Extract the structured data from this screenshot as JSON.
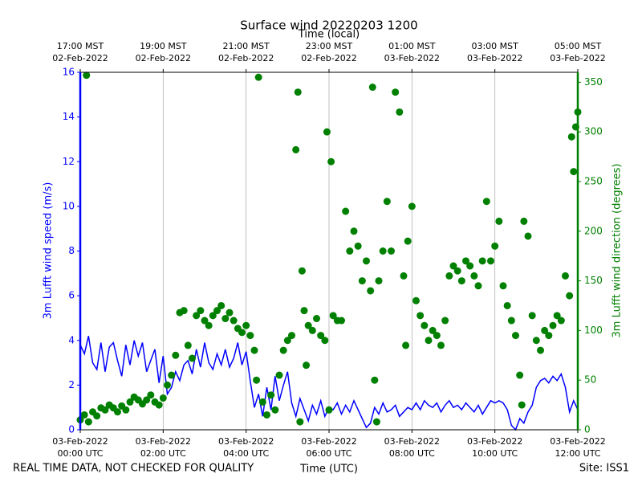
{
  "chart_data": {
    "type": "line-scatter",
    "title": "Surface wind 20220203 1200",
    "x_label": "Time (UTC)",
    "x2_label": "Time (local)",
    "y_label": "3m Lufft wind speed (m/s)",
    "y2_label": "3m Lufft wind direction (degrees)",
    "footer_left": "REAL TIME DATA, NOT CHECKED FOR QUALITY",
    "footer_right": "Site: ISS1",
    "grid": true,
    "xlim": [
      0,
      12
    ],
    "xticks": [
      {
        "value": 0,
        "label": "03-Feb-2022\n00:00 UTC"
      },
      {
        "value": 2,
        "label": "03-Feb-2022\n02:00 UTC"
      },
      {
        "value": 4,
        "label": "03-Feb-2022\n04:00 UTC"
      },
      {
        "value": 6,
        "label": "03-Feb-2022\n06:00 UTC"
      },
      {
        "value": 8,
        "label": "03-Feb-2022\n08:00 UTC"
      },
      {
        "value": 10,
        "label": "03-Feb-2022\n10:00 UTC"
      },
      {
        "value": 12,
        "label": "03-Feb-2022\n12:00 UTC"
      }
    ],
    "x2ticks": [
      {
        "value": 0,
        "label": "17:00 MST\n02-Feb-2022"
      },
      {
        "value": 2,
        "label": "19:00 MST\n02-Feb-2022"
      },
      {
        "value": 4,
        "label": "21:00 MST\n02-Feb-2022"
      },
      {
        "value": 6,
        "label": "23:00 MST\n02-Feb-2022"
      },
      {
        "value": 8,
        "label": "01:00 MST\n03-Feb-2022"
      },
      {
        "value": 10,
        "label": "03:00 MST\n03-Feb-2022"
      },
      {
        "value": 12,
        "label": "05:00 MST\n03-Feb-2022"
      }
    ],
    "ylim": [
      0,
      16
    ],
    "yticks": [
      0,
      2,
      4,
      6,
      8,
      10,
      12,
      14,
      16
    ],
    "y2lim": [
      0,
      360
    ],
    "y2ticks": [
      0,
      50,
      100,
      150,
      200,
      250,
      300,
      350
    ],
    "series": [
      {
        "name": "3m Lufft wind speed (m/s)",
        "type": "line",
        "color": "blue",
        "x": [
          0,
          0.1,
          0.2,
          0.3,
          0.4,
          0.5,
          0.6,
          0.7,
          0.8,
          0.9,
          1,
          1.1,
          1.2,
          1.3,
          1.4,
          1.5,
          1.6,
          1.7,
          1.8,
          1.9,
          2,
          2.1,
          2.2,
          2.3,
          2.4,
          2.5,
          2.6,
          2.7,
          2.8,
          2.9,
          3,
          3.1,
          3.2,
          3.3,
          3.4,
          3.5,
          3.6,
          3.7,
          3.8,
          3.9,
          4,
          4.1,
          4.2,
          4.3,
          4.4,
          4.5,
          4.6,
          4.7,
          4.8,
          4.9,
          5,
          5.1,
          5.2,
          5.3,
          5.4,
          5.5,
          5.6,
          5.7,
          5.8,
          5.9,
          6,
          6.1,
          6.2,
          6.3,
          6.4,
          6.5,
          6.6,
          6.7,
          6.8,
          6.9,
          7,
          7.1,
          7.2,
          7.3,
          7.4,
          7.5,
          7.6,
          7.7,
          7.8,
          7.9,
          8,
          8.1,
          8.2,
          8.3,
          8.4,
          8.5,
          8.6,
          8.7,
          8.8,
          8.9,
          9,
          9.1,
          9.2,
          9.3,
          9.4,
          9.5,
          9.6,
          9.7,
          9.8,
          9.9,
          10,
          10.1,
          10.2,
          10.3,
          10.4,
          10.5,
          10.6,
          10.7,
          10.8,
          10.9,
          11,
          11.1,
          11.2,
          11.3,
          11.4,
          11.5,
          11.6,
          11.7,
          11.8,
          11.9,
          12
        ],
        "values": [
          3.8,
          3.4,
          4.2,
          3.0,
          2.7,
          3.9,
          2.6,
          3.7,
          3.9,
          3.1,
          2.4,
          3.8,
          2.9,
          4.0,
          3.3,
          3.9,
          2.6,
          3.1,
          3.6,
          2.1,
          3.3,
          1.6,
          1.9,
          2.6,
          2.2,
          2.9,
          3.1,
          2.5,
          3.6,
          2.8,
          3.9,
          3.0,
          2.7,
          3.4,
          2.9,
          3.6,
          2.8,
          3.2,
          3.9,
          2.9,
          3.5,
          2.2,
          1.0,
          1.6,
          0.6,
          1.9,
          0.9,
          2.4,
          1.3,
          2.0,
          2.6,
          1.2,
          0.6,
          1.4,
          0.9,
          0.4,
          1.1,
          0.7,
          1.3,
          0.6,
          1.0,
          0.9,
          1.2,
          0.7,
          1.1,
          0.8,
          1.3,
          0.9,
          0.5,
          0.1,
          0.3,
          1.0,
          0.7,
          1.2,
          0.8,
          0.9,
          1.1,
          0.6,
          0.8,
          1.0,
          0.9,
          1.2,
          0.9,
          1.3,
          1.1,
          1.0,
          1.2,
          0.8,
          1.1,
          1.3,
          1.0,
          1.1,
          0.9,
          1.2,
          1.0,
          0.8,
          1.1,
          0.7,
          1.0,
          1.3,
          1.2,
          1.3,
          1.2,
          0.9,
          0.2,
          0.0,
          0.5,
          0.3,
          0.8,
          1.1,
          1.9,
          2.2,
          2.3,
          2.1,
          2.4,
          2.2,
          2.5,
          1.9,
          0.8,
          1.3,
          0.9
        ]
      },
      {
        "name": "3m Lufft wind direction (degrees)",
        "type": "scatter",
        "color": "green",
        "axis": "y2",
        "x": [
          0,
          0.1,
          0.15,
          0.2,
          0.3,
          0.4,
          0.5,
          0.6,
          0.7,
          0.8,
          0.9,
          1,
          1.1,
          1.2,
          1.3,
          1.4,
          1.5,
          1.6,
          1.7,
          1.8,
          1.9,
          2,
          2.1,
          2.2,
          2.3,
          2.4,
          2.5,
          2.6,
          2.7,
          2.8,
          2.9,
          3,
          3.1,
          3.2,
          3.3,
          3.4,
          3.5,
          3.6,
          3.7,
          3.8,
          3.9,
          4,
          4.1,
          4.2,
          4.25,
          4.3,
          4.4,
          4.5,
          4.6,
          4.7,
          4.8,
          4.9,
          5,
          5.1,
          5.2,
          5.25,
          5.3,
          5.35,
          5.4,
          5.45,
          5.5,
          5.6,
          5.7,
          5.8,
          5.9,
          5.95,
          6,
          6.05,
          6.1,
          6.2,
          6.3,
          6.4,
          6.5,
          6.6,
          6.7,
          6.8,
          6.9,
          7,
          7.05,
          7.1,
          7.15,
          7.2,
          7.3,
          7.4,
          7.5,
          7.6,
          7.7,
          7.8,
          7.85,
          7.9,
          8,
          8.1,
          8.2,
          8.3,
          8.4,
          8.5,
          8.6,
          8.7,
          8.8,
          8.9,
          9,
          9.1,
          9.2,
          9.3,
          9.4,
          9.5,
          9.6,
          9.7,
          9.8,
          9.9,
          10,
          10.1,
          10.2,
          10.3,
          10.4,
          10.5,
          10.6,
          10.65,
          10.7,
          10.8,
          10.9,
          11,
          11.1,
          11.2,
          11.3,
          11.4,
          11.5,
          11.6,
          11.7,
          11.8,
          11.85,
          11.9,
          11.95,
          12
        ],
        "values": [
          10,
          15,
          357,
          8,
          18,
          14,
          22,
          20,
          25,
          22,
          18,
          24,
          20,
          28,
          33,
          30,
          26,
          30,
          35,
          28,
          25,
          32,
          45,
          55,
          75,
          118,
          120,
          85,
          72,
          115,
          120,
          110,
          105,
          115,
          120,
          125,
          112,
          118,
          110,
          102,
          98,
          105,
          95,
          80,
          50,
          355,
          28,
          15,
          35,
          20,
          55,
          80,
          90,
          95,
          282,
          340,
          8,
          160,
          120,
          65,
          105,
          100,
          112,
          95,
          90,
          300,
          20,
          270,
          115,
          110,
          110,
          220,
          180,
          200,
          185,
          150,
          170,
          140,
          345,
          50,
          8,
          150,
          180,
          230,
          180,
          340,
          320,
          155,
          85,
          190,
          225,
          130,
          115,
          105,
          90,
          100,
          95,
          85,
          110,
          155,
          165,
          160,
          150,
          170,
          165,
          155,
          145,
          170,
          230,
          170,
          185,
          210,
          145,
          125,
          110,
          95,
          55,
          25,
          210,
          195,
          115,
          90,
          80,
          100,
          95,
          105,
          115,
          110,
          155,
          135,
          295,
          260,
          305,
          320
        ]
      }
    ]
  }
}
